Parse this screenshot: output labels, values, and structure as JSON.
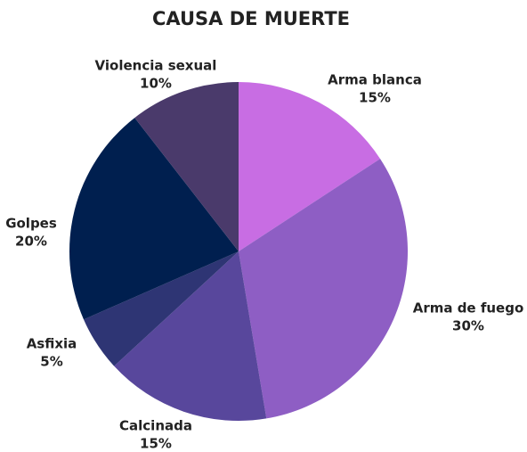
{
  "chart_data": {
    "type": "pie",
    "title": "CAUSA DE MUERTE",
    "categories": [
      "Arma blanca",
      "Arma de fuego",
      "Calcinada",
      "Asfixia",
      "Golpes",
      "Violencia sexual"
    ],
    "values": [
      15,
      30,
      15,
      5,
      20,
      10
    ],
    "value_labels": [
      "15%",
      "30%",
      "15%",
      "5%",
      "20%",
      "10%"
    ],
    "colors": [
      "#c86de3",
      "#8e5ec4",
      "#58479c",
      "#2e3574",
      "#001f4f",
      "#4a3a6b"
    ]
  }
}
